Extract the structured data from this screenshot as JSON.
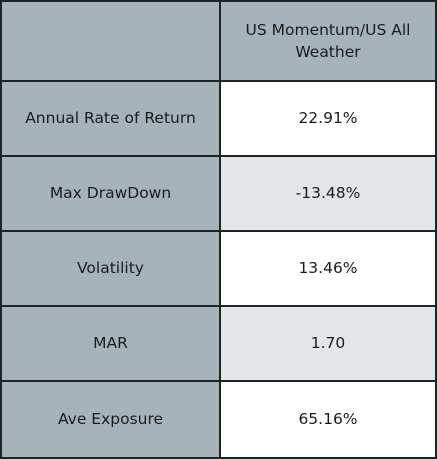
{
  "table": {
    "header": {
      "corner": "",
      "column": "US Momentum/US All Weather"
    },
    "rows": [
      {
        "metric": "Annual Rate of Return",
        "value": "22.91%"
      },
      {
        "metric": "Max DrawDown",
        "value": "-13.48%"
      },
      {
        "metric": "Volatility",
        "value": "13.46%"
      },
      {
        "metric": "MAR",
        "value": "1.70"
      },
      {
        "metric": "Ave Exposure",
        "value": "65.16%"
      }
    ]
  },
  "colors": {
    "label_bg": "#a6b3bb",
    "alt_row_bg": "#e3e6e8",
    "row_bg": "#ffffff",
    "border": "#1e2326"
  }
}
